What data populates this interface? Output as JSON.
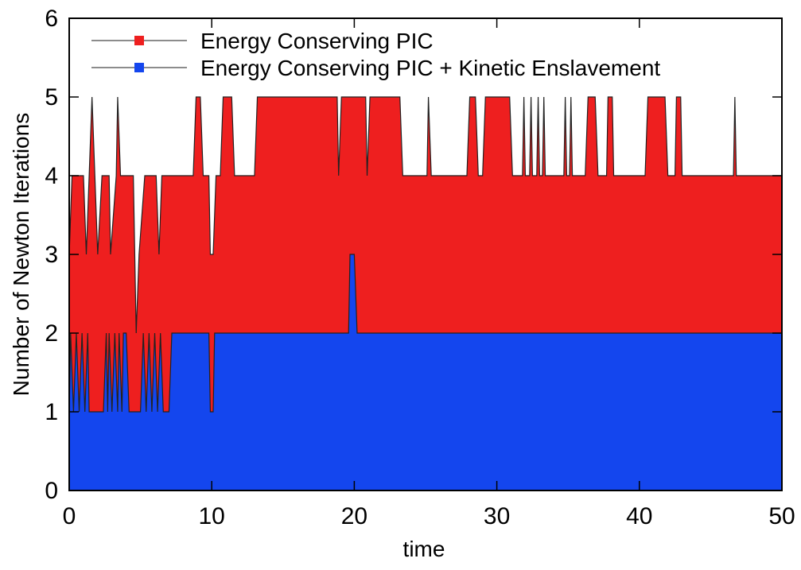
{
  "chart_data": {
    "type": "area",
    "x_label": "time",
    "y_label": "Number of Newton Iterations",
    "xlim": [
      0,
      50
    ],
    "xticks": [
      0,
      10,
      20,
      30,
      40,
      50
    ],
    "ylim": [
      0,
      6
    ],
    "yticks": [
      0,
      1,
      2,
      3,
      4,
      5,
      6
    ],
    "legend": "top-left",
    "series": [
      {
        "name": "Energy Conserving PIC",
        "color": "#ee1f1f",
        "x": [
          0,
          0.2,
          1.0,
          1.2,
          1.6,
          1.8,
          2.0,
          2.3,
          2.8,
          2.9,
          3.3,
          3.4,
          3.6,
          4.5,
          4.7,
          4.9,
          5.3,
          6.1,
          6.3,
          6.5,
          8.7,
          8.9,
          9.2,
          9.4,
          9.8,
          9.9,
          10.1,
          10.3,
          10.6,
          10.8,
          11.4,
          11.6,
          13.0,
          13.2,
          18.8,
          18.9,
          19.1,
          20.8,
          20.9,
          21.1,
          23.2,
          23.4,
          25.1,
          25.2,
          25.4,
          27.9,
          28.1,
          28.5,
          28.7,
          29.0,
          29.2,
          30.9,
          31.1,
          31.8,
          31.9,
          32.0,
          32.3,
          32.4,
          32.5,
          32.8,
          32.9,
          33.0,
          33.2,
          33.3,
          33.4,
          34.7,
          34.8,
          34.9,
          35.1,
          35.2,
          35.3,
          36.2,
          36.4,
          36.9,
          37.1,
          37.7,
          37.8,
          38.1,
          38.2,
          40.4,
          40.6,
          41.8,
          42.0,
          42.5,
          42.6,
          42.9,
          43.0,
          46.6,
          46.7,
          46.8,
          50
        ],
        "values": [
          3,
          4,
          4,
          3,
          5,
          4,
          3,
          4,
          4,
          3,
          4,
          5,
          4,
          4,
          2,
          3,
          4,
          4,
          3,
          4,
          4,
          5,
          5,
          4,
          4,
          3,
          3,
          4,
          4,
          5,
          5,
          4,
          4,
          5,
          5,
          4,
          5,
          5,
          4,
          5,
          5,
          4,
          4,
          5,
          4,
          4,
          5,
          5,
          4,
          4,
          5,
          5,
          4,
          4,
          5,
          4,
          4,
          5,
          4,
          4,
          5,
          4,
          4,
          5,
          4,
          4,
          5,
          4,
          4,
          5,
          4,
          4,
          5,
          5,
          4,
          4,
          5,
          5,
          4,
          4,
          5,
          5,
          4,
          4,
          5,
          5,
          4,
          4,
          5,
          4,
          4
        ]
      },
      {
        "name": "Energy Conserving PIC + Kinetic Enslavement",
        "color": "#1446ee",
        "x": [
          0,
          0.1,
          0.3,
          0.5,
          0.7,
          0.9,
          1.1,
          1.3,
          1.4,
          2.4,
          2.6,
          2.7,
          2.8,
          3.0,
          3.2,
          3.4,
          3.5,
          3.7,
          3.8,
          4.0,
          4.2,
          5.0,
          5.2,
          5.4,
          5.6,
          5.8,
          6.0,
          6.2,
          6.4,
          6.6,
          7.0,
          7.2,
          9.8,
          9.9,
          10.1,
          10.2,
          19.6,
          19.7,
          20.0,
          20.2,
          50
        ],
        "values": [
          1,
          2,
          1,
          2,
          1,
          2,
          1,
          2,
          1,
          1,
          2,
          1,
          2,
          1,
          2,
          1,
          2,
          1,
          2,
          2,
          1,
          1,
          2,
          1,
          2,
          1,
          2,
          1,
          2,
          1,
          1,
          2,
          2,
          1,
          1,
          2,
          2,
          3,
          3,
          2,
          2
        ]
      }
    ]
  }
}
